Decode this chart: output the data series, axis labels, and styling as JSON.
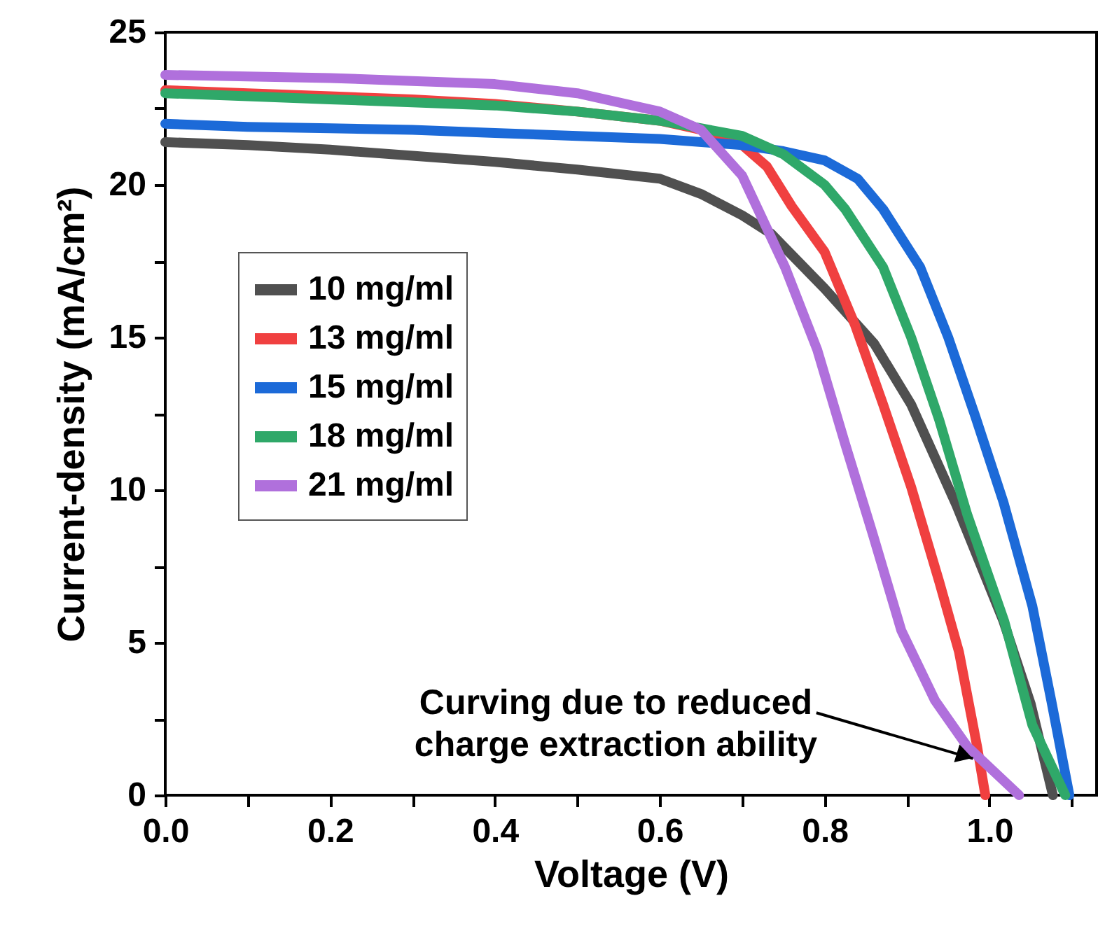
{
  "chart_data": {
    "type": "line",
    "xlabel": "Voltage (V)",
    "ylabel": "Current-density (mA/cm²)",
    "xlim": [
      0,
      1.13
    ],
    "xticks": [
      {
        "value": 0,
        "label": "0.0"
      },
      {
        "value": 0.1,
        "label": null
      },
      {
        "value": 0.2,
        "label": "0.2"
      },
      {
        "value": 0.3,
        "label": null
      },
      {
        "value": 0.4,
        "label": "0.4"
      },
      {
        "value": 0.5,
        "label": null
      },
      {
        "value": 0.6,
        "label": "0.6"
      },
      {
        "value": 0.7,
        "label": null
      },
      {
        "value": 0.8,
        "label": "0.8"
      },
      {
        "value": 0.9,
        "label": null
      },
      {
        "value": 1,
        "label": "1.0"
      },
      {
        "value": 1.1,
        "label": null
      }
    ],
    "ylim": [
      0,
      25
    ],
    "yticks": [
      0,
      {
        "value": 2.5,
        "label": null
      },
      5,
      {
        "value": 7.5,
        "label": null
      },
      10,
      {
        "value": 12.5,
        "label": null
      },
      15,
      {
        "value": 17.5,
        "label": null
      },
      20,
      {
        "value": 22.5,
        "label": null
      },
      25
    ],
    "grid": false,
    "legend": "left",
    "marker": "none",
    "line_style": "solid",
    "series": [
      {
        "name": "10 mg/ml",
        "color": "#505050",
        "x": [
          0,
          0.1,
          0.2,
          0.3,
          0.4,
          0.5,
          0.55,
          0.6,
          0.65,
          0.7,
          0.735,
          0.8,
          0.86,
          0.905,
          0.96,
          1.017,
          1.05,
          1.077
        ],
        "values": [
          21.4,
          21.3,
          21.15,
          20.95,
          20.75,
          20.5,
          20.35,
          20.2,
          19.7,
          19.0,
          18.4,
          16.6,
          14.8,
          12.8,
          9.5,
          5.7,
          3.0,
          0
        ]
      },
      {
        "name": "13 mg/ml",
        "color": "#f04040",
        "x": [
          0,
          0.1,
          0.2,
          0.3,
          0.4,
          0.5,
          0.6,
          0.65,
          0.7,
          0.73,
          0.76,
          0.8,
          0.837,
          0.871,
          0.905,
          0.939,
          0.963,
          0.985,
          0.995
        ],
        "values": [
          23.1,
          23.0,
          22.9,
          22.8,
          22.65,
          22.4,
          22.1,
          21.8,
          21.3,
          20.6,
          19.3,
          17.8,
          15.4,
          12.8,
          10.1,
          7.0,
          4.7,
          1.6,
          0
        ]
      },
      {
        "name": "15 mg/ml",
        "color": "#1c6ad8",
        "x": [
          0,
          0.1,
          0.2,
          0.3,
          0.4,
          0.5,
          0.6,
          0.7,
          0.75,
          0.8,
          0.84,
          0.871,
          0.916,
          0.95,
          0.983,
          1.017,
          1.052,
          1.075,
          1.097
        ],
        "values": [
          22.0,
          21.9,
          21.85,
          21.8,
          21.7,
          21.6,
          21.5,
          21.3,
          21.1,
          20.8,
          20.2,
          19.2,
          17.3,
          15.0,
          12.4,
          9.6,
          6.2,
          3.1,
          0
        ]
      },
      {
        "name": "18 mg/ml",
        "color": "#2fa869",
        "x": [
          0,
          0.1,
          0.2,
          0.3,
          0.4,
          0.5,
          0.6,
          0.7,
          0.75,
          0.8,
          0.825,
          0.871,
          0.905,
          0.939,
          0.973,
          1.018,
          1.052,
          1.092
        ],
        "values": [
          23.0,
          22.9,
          22.8,
          22.7,
          22.6,
          22.4,
          22.1,
          21.6,
          21.0,
          20.0,
          19.2,
          17.3,
          15.0,
          12.3,
          9.2,
          5.7,
          2.3,
          0
        ]
      },
      {
        "name": "21 mg/ml",
        "color": "#b070dc",
        "x": [
          0,
          0.1,
          0.2,
          0.3,
          0.4,
          0.5,
          0.6,
          0.65,
          0.7,
          0.752,
          0.791,
          0.825,
          0.859,
          0.893,
          0.934,
          0.973,
          1.036
        ],
        "values": [
          23.6,
          23.55,
          23.5,
          23.4,
          23.3,
          23.0,
          22.4,
          21.8,
          20.3,
          17.3,
          14.6,
          11.5,
          8.5,
          5.4,
          3.1,
          1.6,
          0
        ]
      }
    ],
    "annotations": [
      {
        "text": "Curving due to reduced\ncharge extraction ability",
        "x": 0.98,
        "y": 1.2
      }
    ]
  }
}
